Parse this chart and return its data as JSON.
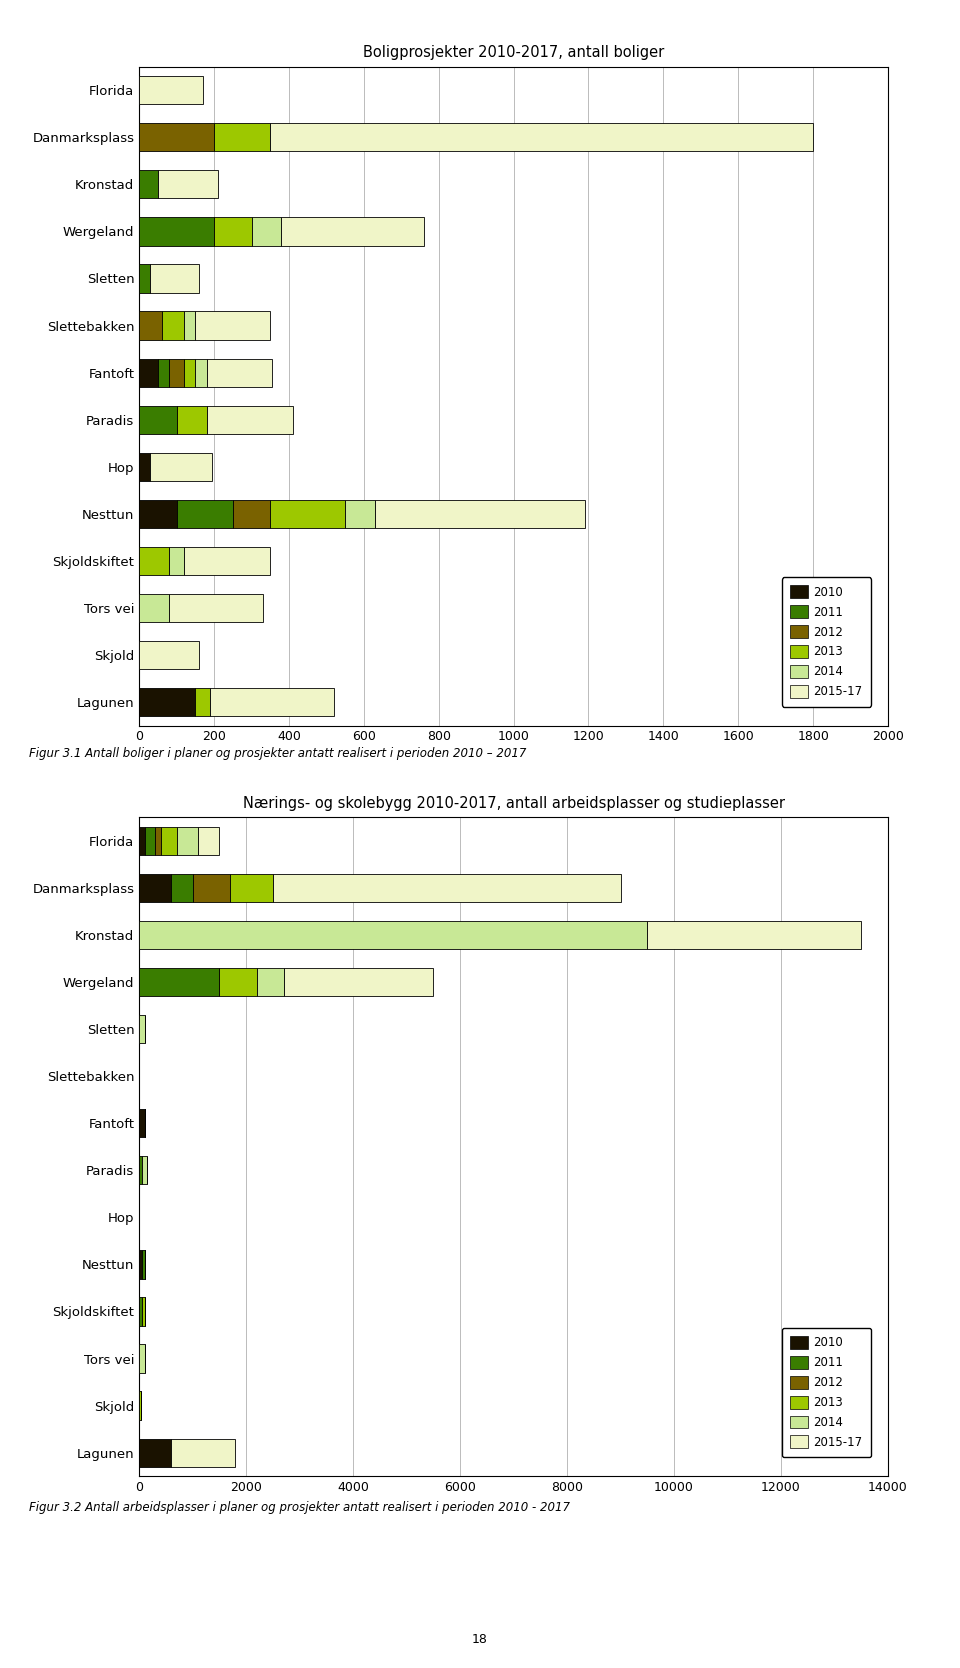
{
  "chart1": {
    "title": "Boligprosjekter 2010-2017, antall boliger",
    "categories": [
      "Florida",
      "Danmarksplass",
      "Kronstad",
      "Wergeland",
      "Sletten",
      "Slettebakken",
      "Fantoft",
      "Paradis",
      "Hop",
      "Nesttun",
      "Skjoldskiftet",
      "Tors vei",
      "Skjold",
      "Lagunen"
    ],
    "data": {
      "2010": [
        0,
        0,
        0,
        0,
        0,
        0,
        50,
        0,
        30,
        100,
        0,
        0,
        0,
        150
      ],
      "2011": [
        0,
        0,
        50,
        200,
        30,
        0,
        30,
        100,
        0,
        150,
        0,
        0,
        0,
        0
      ],
      "2012": [
        0,
        200,
        0,
        0,
        0,
        60,
        40,
        0,
        0,
        100,
        0,
        0,
        0,
        0
      ],
      "2013": [
        0,
        150,
        0,
        100,
        0,
        60,
        30,
        80,
        0,
        200,
        80,
        0,
        0,
        40
      ],
      "2014": [
        0,
        0,
        0,
        80,
        0,
        30,
        30,
        0,
        0,
        80,
        40,
        80,
        0,
        0
      ],
      "2015-17": [
        170,
        1450,
        160,
        380,
        130,
        200,
        175,
        230,
        165,
        560,
        230,
        250,
        160,
        330
      ]
    },
    "xlim": [
      0,
      2000
    ],
    "xticks": [
      0,
      200,
      400,
      600,
      800,
      1000,
      1200,
      1400,
      1600,
      1800,
      2000
    ],
    "caption": "Figur 3.1 Antall boliger i planer og prosjekter antatt realisert i perioden 2010 – 2017"
  },
  "chart2": {
    "title": "Nærings- og skolebygg 2010-2017, antall arbeidsplasser og studieplasser",
    "categories": [
      "Florida",
      "Danmarksplass",
      "Kronstad",
      "Wergeland",
      "Sletten",
      "Slettebakken",
      "Fantoft",
      "Paradis",
      "Hop",
      "Nesttun",
      "Skjoldskiftet",
      "Tors vei",
      "Skjold",
      "Lagunen"
    ],
    "data": {
      "2010": [
        100,
        600,
        0,
        0,
        0,
        0,
        100,
        0,
        0,
        50,
        0,
        0,
        0,
        600
      ],
      "2011": [
        200,
        400,
        0,
        1500,
        0,
        0,
        0,
        50,
        0,
        50,
        50,
        0,
        0,
        0
      ],
      "2012": [
        100,
        700,
        0,
        0,
        0,
        0,
        0,
        0,
        0,
        0,
        0,
        0,
        0,
        0
      ],
      "2013": [
        300,
        800,
        0,
        700,
        0,
        0,
        0,
        0,
        0,
        0,
        50,
        0,
        30,
        0
      ],
      "2014": [
        400,
        0,
        9500,
        500,
        100,
        0,
        0,
        100,
        0,
        0,
        0,
        100,
        0,
        0
      ],
      "2015-17": [
        400,
        6500,
        4000,
        2800,
        0,
        0,
        0,
        0,
        0,
        0,
        0,
        0,
        0,
        1200
      ]
    },
    "xlim": [
      0,
      14000
    ],
    "xticks": [
      0,
      2000,
      4000,
      6000,
      8000,
      10000,
      12000,
      14000
    ],
    "caption": "Figur 3.2 Antall arbeidsplasser i planer og prosjekter antatt realisert i perioden 2010 - 2017"
  },
  "colors": {
    "2010": "#1a1200",
    "2011": "#3a7d00",
    "2012": "#7a6200",
    "2013": "#9dc800",
    "2014": "#c8e896",
    "2015-17": "#f0f5c8"
  },
  "years": [
    "2010",
    "2011",
    "2012",
    "2013",
    "2014",
    "2015-17"
  ],
  "page_number": "18",
  "background_color": "#ffffff",
  "grid_color": "#bbbbbb"
}
